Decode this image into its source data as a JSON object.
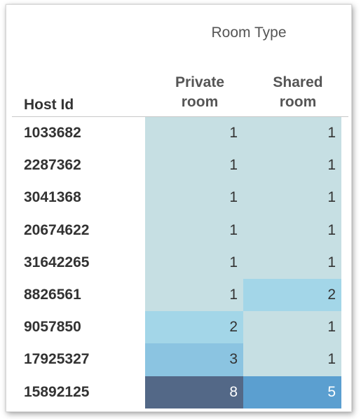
{
  "chart_data": {
    "type": "heatmap",
    "column_group_header": "Room Type",
    "row_header": "Host Id",
    "columns": [
      {
        "line1": "Private",
        "line2": "room"
      },
      {
        "line1": "Shared",
        "line2": "room"
      }
    ],
    "rows": [
      {
        "host_id": "1033682",
        "values": [
          1,
          1
        ]
      },
      {
        "host_id": "2287362",
        "values": [
          1,
          1
        ]
      },
      {
        "host_id": "3041368",
        "values": [
          1,
          1
        ]
      },
      {
        "host_id": "20674622",
        "values": [
          1,
          1
        ]
      },
      {
        "host_id": "31642265",
        "values": [
          1,
          1
        ]
      },
      {
        "host_id": "8826561",
        "values": [
          1,
          2
        ]
      },
      {
        "host_id": "9057850",
        "values": [
          2,
          1
        ]
      },
      {
        "host_id": "17925327",
        "values": [
          3,
          1
        ]
      },
      {
        "host_id": "15892125",
        "values": [
          8,
          5
        ]
      }
    ],
    "color_scale": {
      "1": "#c6dfe3",
      "2": "#a3d6e8",
      "3": "#8bc4e1",
      "5": "#5b9fd0",
      "8": "#536887"
    },
    "light_text_color": "#333333",
    "dark_text_color": "#ffffff"
  }
}
